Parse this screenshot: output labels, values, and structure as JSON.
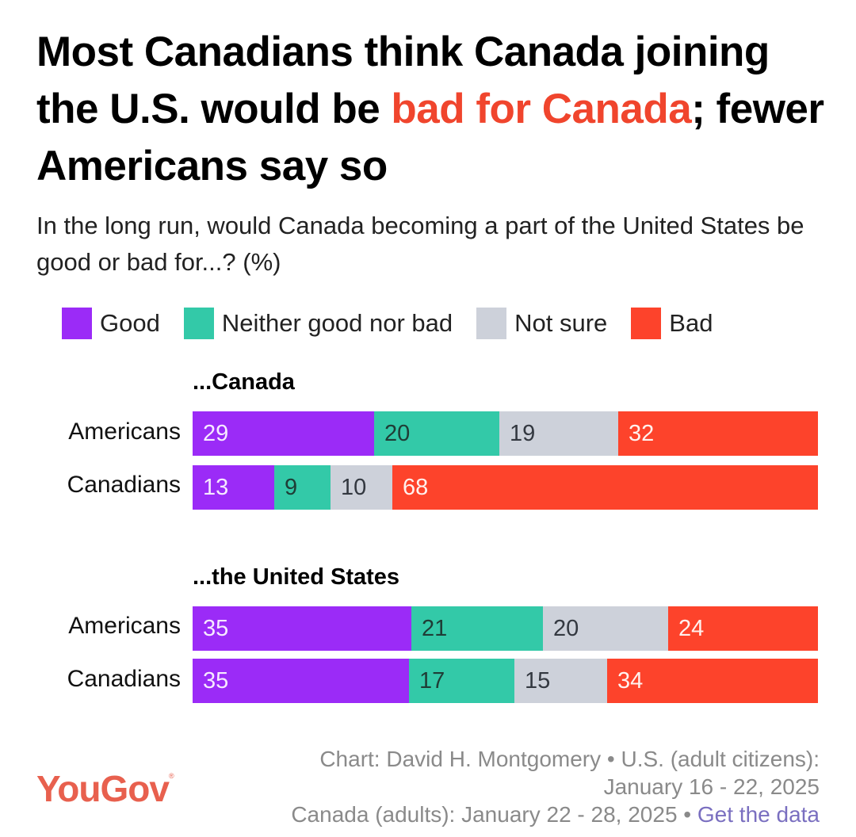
{
  "title": {
    "part1": "Most Canadians think Canada joining the U.S. would be ",
    "highlight": "bad for Canada",
    "part2": "; fewer Americans say so"
  },
  "subtitle": "In the long run, would Canada becoming a part of the United States be good or bad for...? (%)",
  "colors": {
    "good": "#9b2bf7",
    "neither": "#33c9a8",
    "not_sure": "#cdd1da",
    "bad": "#fd432b",
    "highlight": "#f0452d"
  },
  "chart_data": {
    "type": "bar",
    "orientation": "horizontal-stacked-100",
    "title": "Most Canadians think Canada joining the U.S. would be bad for Canada; fewer Americans say so",
    "subtitle": "In the long run, would Canada becoming a part of the United States be good or bad for...? (%)",
    "legend": {
      "placement": "top",
      "entries": [
        "Good",
        "Neither good nor bad",
        "Not sure",
        "Bad"
      ]
    },
    "series_keys": [
      "good",
      "neither",
      "not_sure",
      "bad"
    ],
    "groups": [
      {
        "label": "...Canada",
        "rows": [
          {
            "label": "Americans",
            "values": [
              29,
              20,
              19,
              32
            ]
          },
          {
            "label": "Canadians",
            "values": [
              13,
              9,
              10,
              68
            ]
          }
        ]
      },
      {
        "label": "...the United States",
        "rows": [
          {
            "label": "Americans",
            "values": [
              35,
              21,
              20,
              24
            ]
          },
          {
            "label": "Canadians",
            "values": [
              35,
              17,
              15,
              34
            ]
          }
        ]
      }
    ],
    "xlim": [
      0,
      100
    ],
    "xlabel": "",
    "ylabel": ""
  },
  "footer": {
    "line1": "Chart: David H. Montgomery • U.S. (adult citizens):",
    "line2": "January 16 - 22, 2025",
    "line3": "Canada (adults): January 22 - 28, 2025 • ",
    "link": "Get the data"
  },
  "logo": {
    "text": "YouGov",
    "mark": "®"
  }
}
